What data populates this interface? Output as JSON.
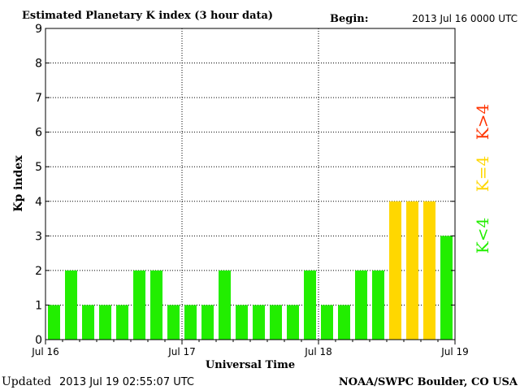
{
  "header": {
    "title": "Estimated Planetary K index (3 hour data)",
    "begin_label": "Begin:",
    "begin_value": "2013 Jul 16 0000 UTC"
  },
  "footer": {
    "updated_label": "Updated",
    "updated_value": "2013 Jul 19 02:55:07 UTC",
    "source": "NOAA/SWPC Boulder, CO USA"
  },
  "legend": {
    "above": {
      "label": "K>4",
      "color": "#ff3300"
    },
    "equal": {
      "label": "K=4",
      "color": "#ffd700"
    },
    "below": {
      "label": "K<4",
      "color": "#22ee00"
    }
  },
  "chart_data": {
    "type": "bar",
    "title": "Estimated Planetary K index (3 hour data)",
    "xlabel": "Universal Time",
    "ylabel": "Kp index",
    "ylim": [
      0,
      9
    ],
    "yticks": [
      0,
      1,
      2,
      3,
      4,
      5,
      6,
      7,
      8,
      9
    ],
    "xticks": [
      "Jul 16",
      "Jul 17",
      "Jul 18",
      "Jul 19"
    ],
    "interval_hours": 3,
    "grid": true,
    "values": [
      1,
      2,
      1,
      1,
      1,
      2,
      2,
      1,
      1,
      1,
      2,
      1,
      1,
      1,
      1,
      2,
      1,
      1,
      2,
      2,
      4,
      4,
      4,
      3
    ],
    "colors": {
      "below4": "#22ee00",
      "equal4": "#ffd700",
      "above4": "#ff3300"
    }
  }
}
